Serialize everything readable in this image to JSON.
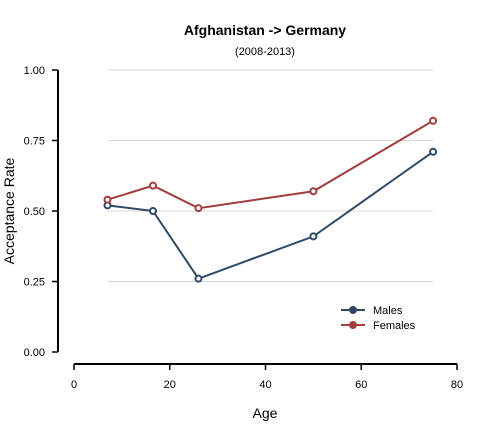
{
  "chart_data": {
    "type": "line",
    "title": "Afghanistan  ->  Germany",
    "subtitle": "(2008-2013)",
    "xlabel": "Age",
    "ylabel": "Acceptance Rate",
    "xlim": [
      0,
      80
    ],
    "ylim": [
      0,
      1
    ],
    "x_ticks": [
      "0",
      "20",
      "40",
      "60",
      "80"
    ],
    "y_ticks": [
      "0.00",
      "0.25",
      "0.50",
      "0.75",
      "1.00"
    ],
    "grid": "horizontal",
    "legend_position": "bottom-right",
    "series": [
      {
        "name": "Males",
        "color": "#2e4a66",
        "x": [
          7,
          16.5,
          26,
          50,
          75
        ],
        "y": [
          0.52,
          0.5,
          0.26,
          0.41,
          0.71
        ]
      },
      {
        "name": "Females",
        "color": "#a23d3f",
        "x": [
          7,
          16.5,
          26,
          50,
          75
        ],
        "y": [
          0.54,
          0.59,
          0.51,
          0.57,
          0.82
        ]
      }
    ]
  }
}
